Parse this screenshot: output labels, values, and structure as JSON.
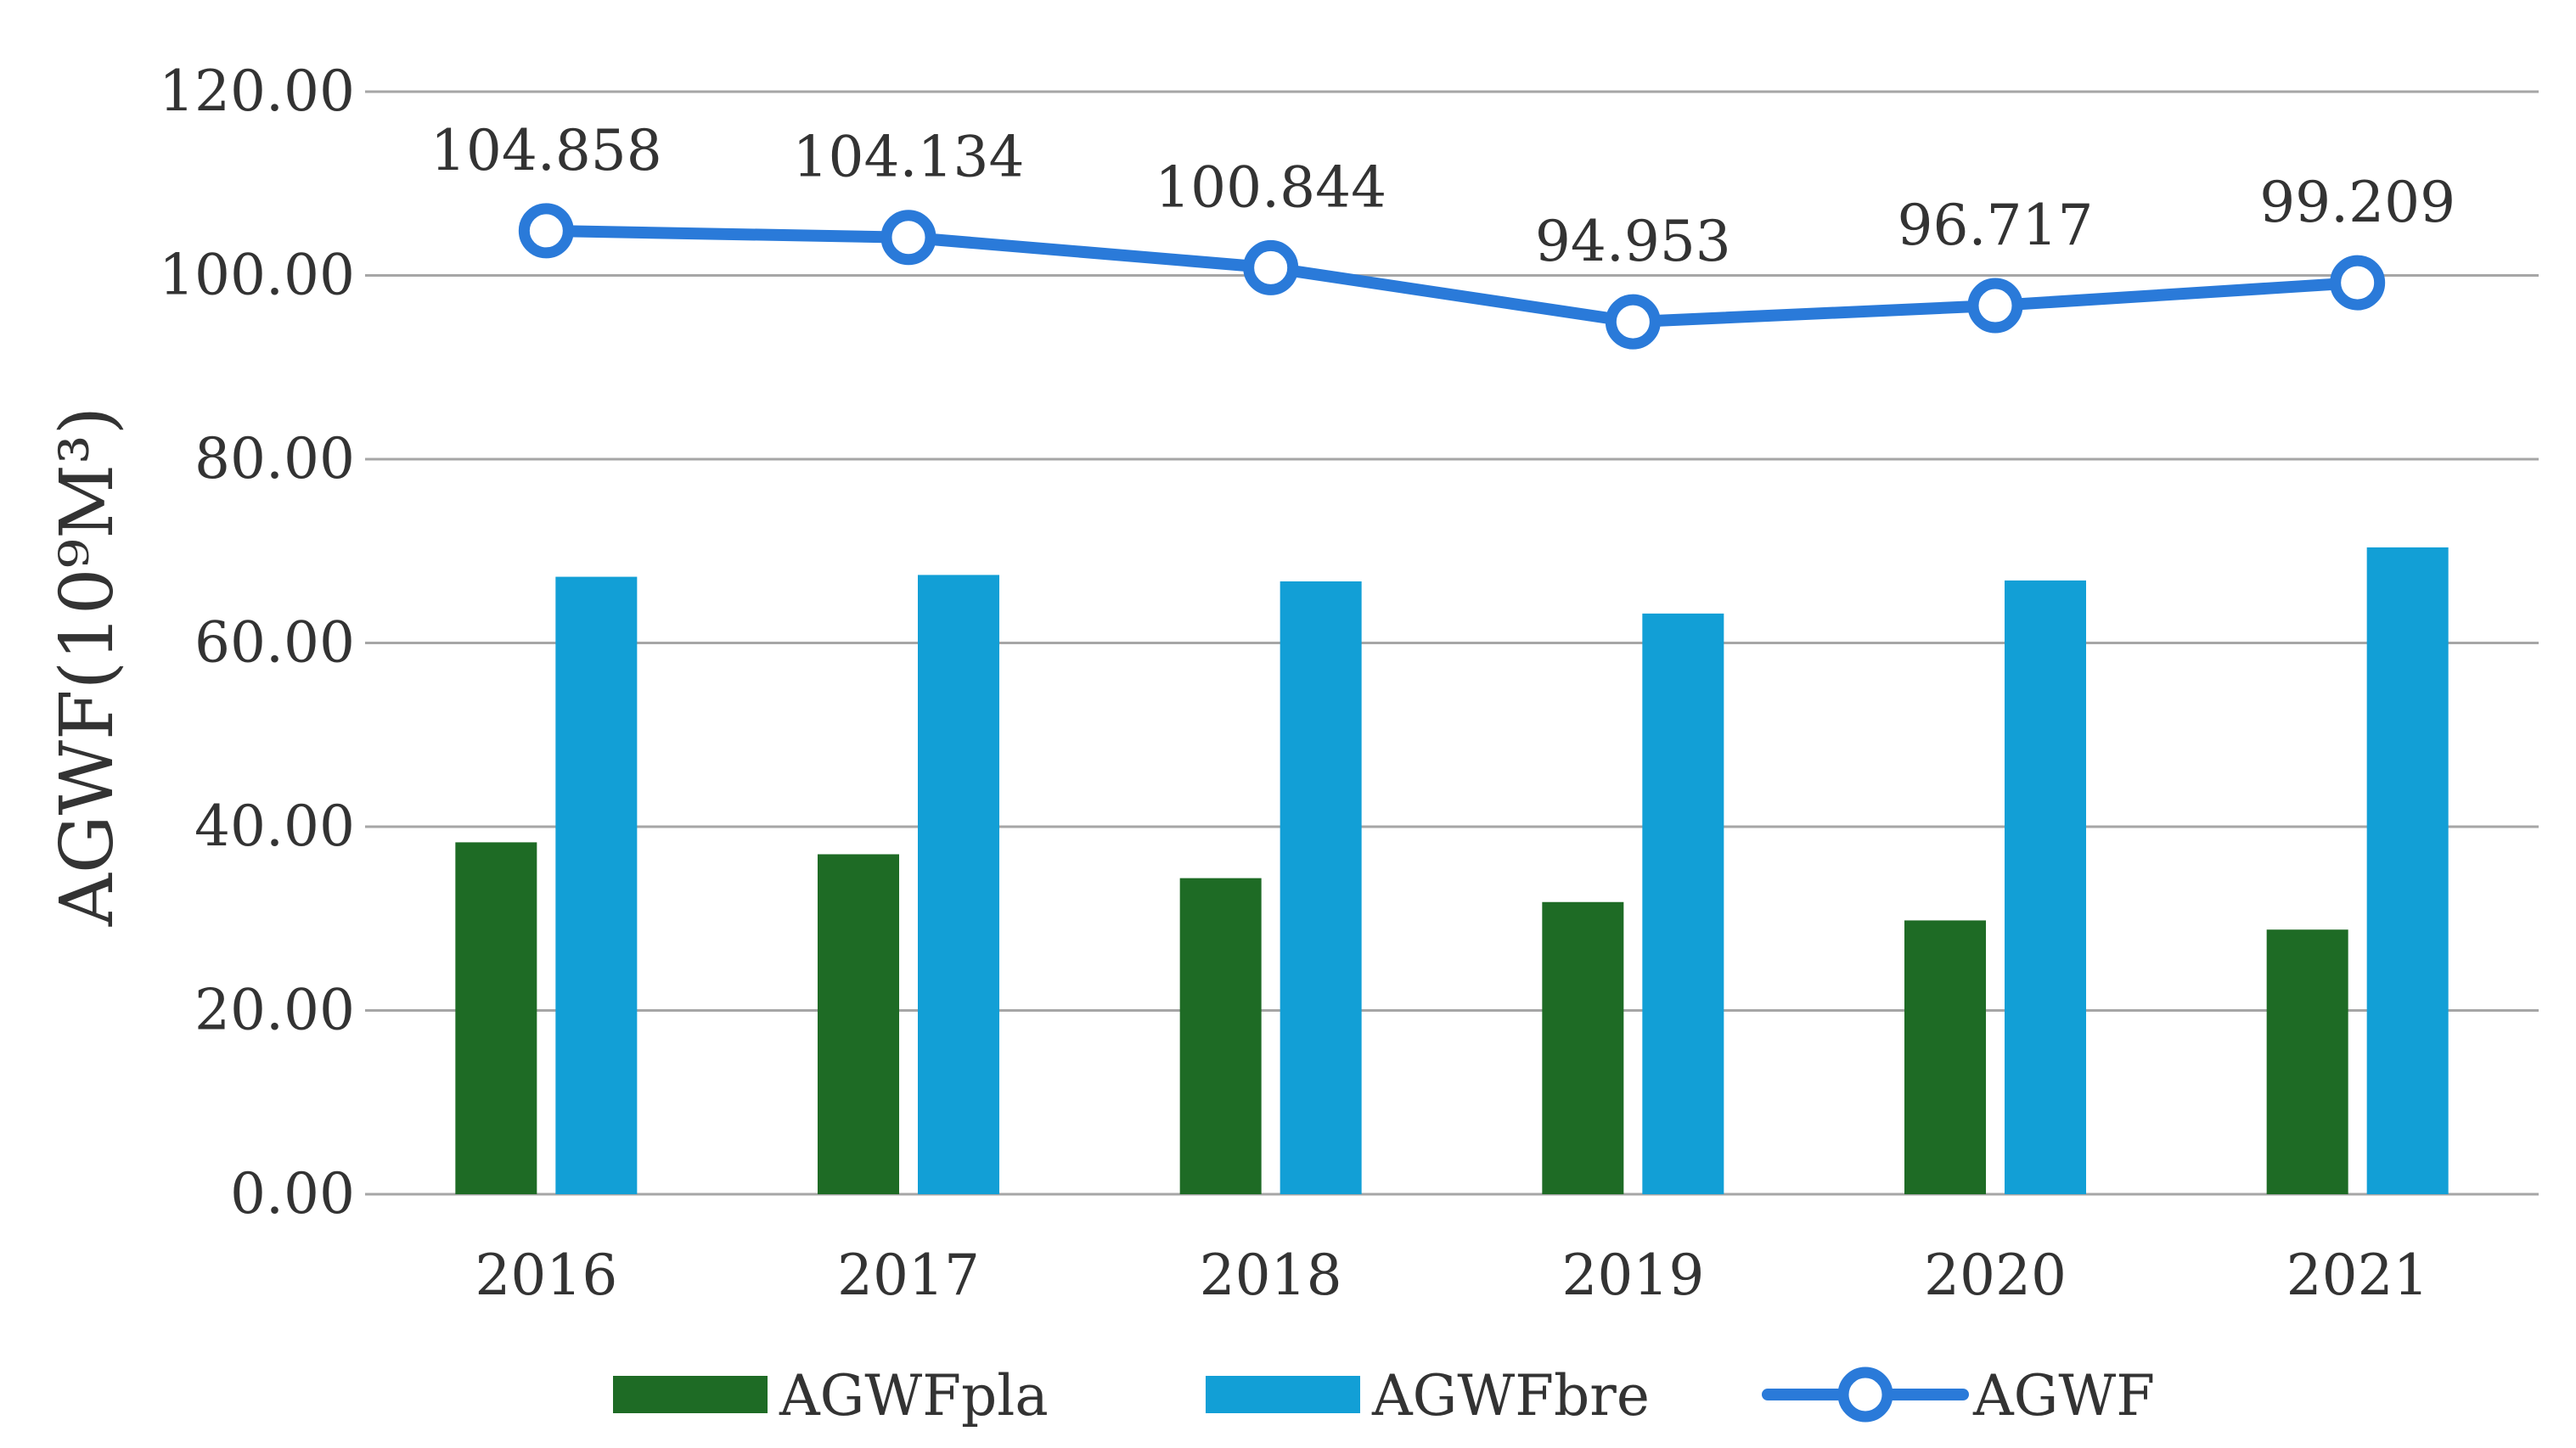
{
  "chart_data": {
    "type": "bar",
    "title": "",
    "xlabel": "",
    "ylabel": "AGWF(10⁹M³)",
    "ylim": [
      0,
      120
    ],
    "yticks": [
      0,
      20,
      40,
      60,
      80,
      100,
      120
    ],
    "ytick_labels": [
      "0.00",
      "20.00",
      "40.00",
      "60.00",
      "80.00",
      "100.00",
      "120.00"
    ],
    "grid": true,
    "legend_position": "bottom",
    "categories": [
      "2016",
      "2017",
      "2018",
      "2019",
      "2020",
      "2021"
    ],
    "series": [
      {
        "name": "AGWFpla",
        "type": "bar",
        "color": "#1e6b25",
        "values": [
          38.3,
          37.0,
          34.4,
          31.8,
          29.8,
          28.8
        ]
      },
      {
        "name": "AGWFbre",
        "type": "bar",
        "color": "#129fd6",
        "values": [
          67.2,
          67.4,
          66.7,
          63.2,
          66.8,
          70.4
        ]
      },
      {
        "name": "AGWF",
        "type": "line",
        "color": "#2a7ad9",
        "values": [
          104.858,
          104.134,
          100.844,
          94.953,
          96.717,
          99.209
        ],
        "labels": [
          "104.858",
          "104.134",
          "100.844",
          "94.953",
          "96.717",
          "99.209"
        ]
      }
    ]
  }
}
